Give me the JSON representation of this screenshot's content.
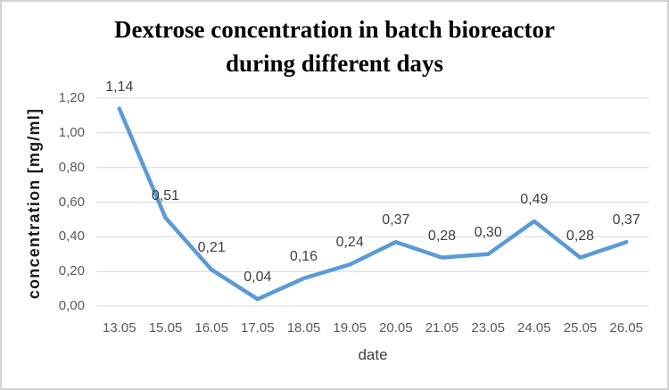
{
  "frame": {
    "background": "#ffffff",
    "border_color": "#d3d3d3"
  },
  "chart_data": {
    "type": "line",
    "title": "Dextrose concentration in batch bioreactor during different days",
    "title_lines": [
      "Dextrose concentration in batch bioreactor",
      "during different days"
    ],
    "xlabel": "date",
    "ylabel": "concentration [mg/ml]",
    "categories": [
      "13.05",
      "15.05",
      "16.05",
      "17.05",
      "18.05",
      "19.05",
      "20.05",
      "21.05",
      "23.05",
      "24.05",
      "25.05",
      "26.05"
    ],
    "values": [
      1.14,
      0.51,
      0.21,
      0.04,
      0.16,
      0.24,
      0.37,
      0.28,
      0.3,
      0.49,
      0.28,
      0.37
    ],
    "data_labels": [
      "1,14",
      "0,51",
      "0,21",
      "0,04",
      "0,16",
      "0,24",
      "0,37",
      "0,28",
      "0,30",
      "0,49",
      "0,28",
      "0,37"
    ],
    "y_ticks": [
      {
        "value": 0.0,
        "label": "0,00"
      },
      {
        "value": 0.2,
        "label": "0,20"
      },
      {
        "value": 0.4,
        "label": "0,40"
      },
      {
        "value": 0.6,
        "label": "0,60"
      },
      {
        "value": 0.8,
        "label": "0,80"
      },
      {
        "value": 1.0,
        "label": "1,00"
      },
      {
        "value": 1.2,
        "label": "1,20"
      }
    ],
    "ylim": [
      0,
      1.2
    ],
    "grid": true,
    "legend_position": "none",
    "colors": {
      "line": "#5b9bd5",
      "gridline": "#d9d9d9",
      "tick_label": "#595959",
      "data_label": "#3f3f3f",
      "axis_title": "#3f3f3f",
      "title": "#000000"
    }
  }
}
